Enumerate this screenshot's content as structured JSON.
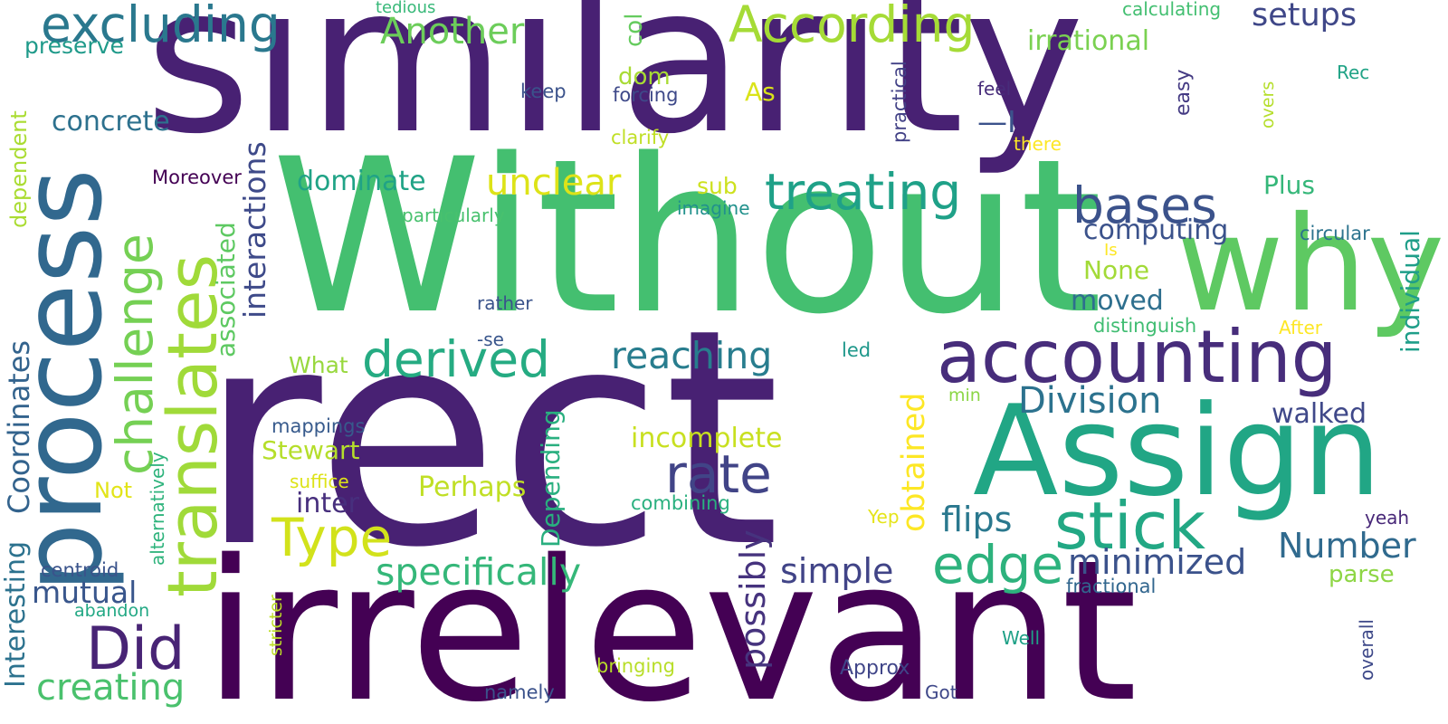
{
  "words": [
    {
      "text": "similarity",
      "color": "#482173"
    },
    {
      "text": "Without",
      "color": "#44bf70"
    },
    {
      "text": "rect",
      "color": "#482173"
    },
    {
      "text": "irrelevant",
      "color": "#440154"
    },
    {
      "text": "process",
      "color": "#31688e"
    },
    {
      "text": "Assign",
      "color": "#21a685"
    },
    {
      "text": "why",
      "color": "#5ec962"
    },
    {
      "text": "accounting",
      "color": "#472d7b"
    },
    {
      "text": "translates",
      "color": "#a0da39"
    },
    {
      "text": "stick",
      "color": "#22a884"
    },
    {
      "text": "excluding",
      "color": "#2a788e"
    },
    {
      "text": "According",
      "color": "#a5db36"
    },
    {
      "text": "treating",
      "color": "#1fa188"
    },
    {
      "text": "challenge",
      "color": "#75d054"
    },
    {
      "text": "derived",
      "color": "#25ab82"
    },
    {
      "text": "bases",
      "color": "#3b528b"
    },
    {
      "text": "Did",
      "color": "#482475"
    },
    {
      "text": "edge",
      "color": "#2db27d"
    },
    {
      "text": "rate",
      "color": "#414487"
    },
    {
      "text": "Type",
      "color": "#d2e21b"
    },
    {
      "text": "Coordinates",
      "color": "#33638d"
    },
    {
      "text": "interactions",
      "color": "#3e4a89"
    },
    {
      "text": "obtained",
      "color": "#fde725"
    },
    {
      "text": "specifically",
      "color": "#35b779"
    },
    {
      "text": "Division",
      "color": "#2c728e"
    },
    {
      "text": "reaching",
      "color": "#287d8e"
    },
    {
      "text": "unclear",
      "color": "#dde318"
    },
    {
      "text": "minimized",
      "color": "#3b528b"
    },
    {
      "text": "flips",
      "color": "#2a788e"
    },
    {
      "text": "Number",
      "color": "#306a8e"
    },
    {
      "text": "possibly",
      "color": "#46337e"
    },
    {
      "text": "creating",
      "color": "#4ac16d"
    },
    {
      "text": "simple",
      "color": "#414487"
    },
    {
      "text": "Another",
      "color": "#6ccd5a"
    },
    {
      "text": "setups",
      "color": "#3f4788"
    },
    {
      "text": "irrational",
      "color": "#7ad151"
    },
    {
      "text": "mutual",
      "color": "#39568c"
    },
    {
      "text": "Interesting",
      "color": "#2c728e"
    },
    {
      "text": "Depending",
      "color": "#29af7f"
    },
    {
      "text": "incomplete",
      "color": "#c8e020"
    },
    {
      "text": "concrete",
      "color": "#2d718e"
    },
    {
      "text": "associated",
      "color": "#5ec962"
    },
    {
      "text": "computing",
      "color": "#3b528b"
    },
    {
      "text": "Stewart",
      "color": "#b5de2b"
    },
    {
      "text": "Perhaps",
      "color": "#c0df25"
    },
    {
      "text": "individual",
      "color": "#1f9e89"
    },
    {
      "text": "dominate",
      "color": "#20a386"
    },
    {
      "text": "moved",
      "color": "#2e6f8e"
    },
    {
      "text": "walked",
      "color": "#3f4889"
    },
    {
      "text": "inter",
      "color": "#472f7d"
    },
    {
      "text": "—I",
      "color": "#3b528b"
    },
    {
      "text": "dependent",
      "color": "#aadc32"
    },
    {
      "text": "None",
      "color": "#a2da37"
    },
    {
      "text": "What",
      "color": "#98d83e"
    },
    {
      "text": "Plus",
      "color": "#35b779"
    },
    {
      "text": "preserve",
      "color": "#1f9a8a"
    },
    {
      "text": "As",
      "color": "#dae319"
    },
    {
      "text": "dom",
      "color": "#a8db34"
    },
    {
      "text": "parse",
      "color": "#8ed645"
    },
    {
      "text": "col",
      "color": "#65cb5e"
    },
    {
      "text": "Not",
      "color": "#e2e418"
    },
    {
      "text": "sub",
      "color": "#cde11d"
    },
    {
      "text": "easy",
      "color": "#443a83"
    },
    {
      "text": "practical",
      "color": "#424186"
    },
    {
      "text": "min",
      "color": "#8bd646"
    },
    {
      "text": "mappings",
      "color": "#375a8c"
    },
    {
      "text": "fractional",
      "color": "#31668e"
    },
    {
      "text": "alternatively",
      "color": "#2eb37c"
    },
    {
      "text": "centroid",
      "color": "#3a538b"
    },
    {
      "text": "combining",
      "color": "#2ab07f"
    },
    {
      "text": "bringing",
      "color": "#b8de29"
    },
    {
      "text": "Approx",
      "color": "#404588"
    },
    {
      "text": "overall",
      "color": "#3e4989"
    },
    {
      "text": "distinguish",
      "color": "#40bd72"
    },
    {
      "text": "circular",
      "color": "#2c738e"
    },
    {
      "text": "particularly",
      "color": "#48c16e"
    },
    {
      "text": "clarify",
      "color": "#c0df25"
    },
    {
      "text": "Moreover",
      "color": "#440154"
    },
    {
      "text": "forcing",
      "color": "#3e4989"
    },
    {
      "text": "keep",
      "color": "#3b528b"
    },
    {
      "text": "imagine",
      "color": "#21918c"
    },
    {
      "text": "rather",
      "color": "#3a538b"
    },
    {
      "text": "-se",
      "color": "#39568c"
    },
    {
      "text": "led",
      "color": "#1f988b"
    },
    {
      "text": "suffice",
      "color": "#dde318"
    },
    {
      "text": "Yep",
      "color": "#e5e419"
    },
    {
      "text": "After",
      "color": "#fde725"
    },
    {
      "text": "Is",
      "color": "#fde725"
    },
    {
      "text": "there",
      "color": "#fde725"
    },
    {
      "text": "feel",
      "color": "#472c7a"
    },
    {
      "text": "Rec",
      "color": "#20a386"
    },
    {
      "text": "overs",
      "color": "#b5de2b"
    },
    {
      "text": "tedious",
      "color": "#37b878"
    },
    {
      "text": "calculating",
      "color": "#43bf71"
    },
    {
      "text": "Well",
      "color": "#1fa187"
    },
    {
      "text": "Got",
      "color": "#3f4889"
    },
    {
      "text": "namely",
      "color": "#3b528b"
    },
    {
      "text": "yeah",
      "color": "#482878"
    },
    {
      "text": "abandon",
      "color": "#22a884"
    },
    {
      "text": "stricter",
      "color": "#bddf26"
    }
  ]
}
